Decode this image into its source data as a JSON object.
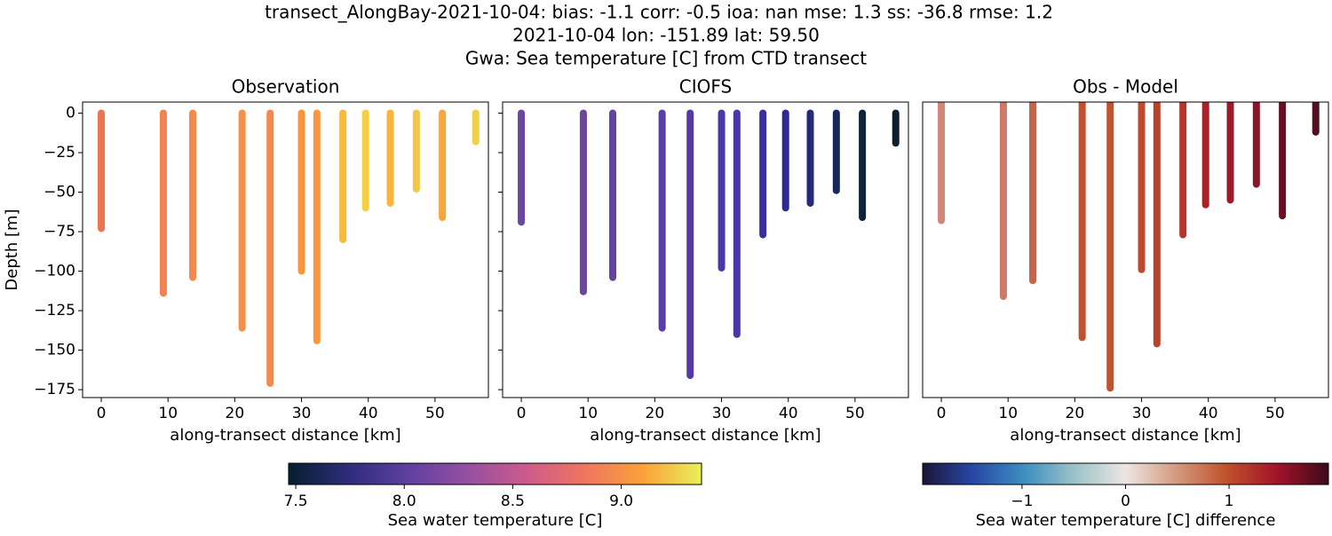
{
  "suptitle": [
    "transect_AlongBay-2021-10-04: bias: -1.1  corr: -0.5  ioa: nan  mse: 1.3  ss: -36.8  rmse: 1.2",
    "2021-10-04 lon: -151.89 lat: 59.50",
    "Gwa: Sea temperature [C] from CTD transect"
  ],
  "chart_data": [
    {
      "type": "column",
      "title": "Observation",
      "xlabel": "along-transect distance [km]",
      "ylabel": "Depth [m]",
      "xlim": [
        -2.8,
        58.0
      ],
      "xticks": [
        0,
        10,
        20,
        30,
        40,
        50
      ],
      "ylim": [
        -180,
        7
      ],
      "yticks": [
        0,
        {
          "value": -25,
          "label": "−25"
        },
        {
          "value": -50,
          "label": "−50"
        },
        {
          "value": -75,
          "label": "−75"
        },
        {
          "value": -100,
          "label": "−100"
        },
        {
          "value": -125,
          "label": "−125"
        },
        {
          "value": -150,
          "label": "−150"
        },
        {
          "value": -175,
          "label": "−175"
        }
      ],
      "show_ytick_labels": true,
      "x": [
        0,
        9.3,
        13.7,
        21.1,
        25.3,
        30,
        32.3,
        36.2,
        39.6,
        43.3,
        47.2,
        51.1,
        56.1
      ],
      "values": [
        -73,
        -114,
        -104,
        -136,
        -171,
        -100,
        -144,
        -80,
        -60,
        -57,
        -48,
        -66,
        -18
      ],
      "colors": [
        "#ee7350",
        "#f08350",
        "#f28a4e",
        "#f5904a",
        "#f58a4a",
        "#f8963f",
        "#f8973f",
        "#fbb83a",
        "#f5d040",
        "#fbb53a",
        "#f3c548",
        "#f9a43c",
        "#f1cf47"
      ]
    },
    {
      "type": "column",
      "title": "CIOFS",
      "xlabel": "along-transect distance [km]",
      "xlim": [
        -2.8,
        58.0
      ],
      "xticks": [
        0,
        10,
        20,
        30,
        40,
        50
      ],
      "ylim": [
        -180,
        7
      ],
      "yticks": [
        0,
        -25,
        -50,
        -75,
        -100,
        -125,
        -150,
        -175
      ],
      "show_ytick_labels": false,
      "x": [
        0,
        9.3,
        13.7,
        21.1,
        25.3,
        30,
        32.3,
        36.2,
        39.6,
        43.3,
        47.2,
        51.1,
        56.1
      ],
      "values": [
        -69,
        -113,
        -104,
        -136,
        -166,
        -98,
        -140,
        -77,
        -60,
        -57,
        -49,
        -66,
        -19
      ],
      "colors": [
        "#6a46a0",
        "#6a46a0",
        "#6443a0",
        "#5a3da4",
        "#553aa6",
        "#4c37a8",
        "#4a36a8",
        "#3b2fa0",
        "#2d2a92",
        "#232a7e",
        "#16275e",
        "#0d223c",
        "#0b1f30"
      ]
    },
    {
      "type": "column",
      "title": "Obs - Model",
      "xlabel": "along-transect distance [km]",
      "xlim": [
        -2.8,
        58.0
      ],
      "xticks": [
        0,
        10,
        20,
        30,
        40,
        50
      ],
      "ylim": [
        -180,
        7
      ],
      "columns_from_top": true,
      "x": [
        0,
        9.3,
        13.7,
        21.1,
        25.3,
        30,
        32.3,
        36.2,
        39.6,
        43.3,
        47.2,
        51.1,
        56.1
      ],
      "values": [
        -68,
        -116,
        -106,
        -142,
        -174,
        -99,
        -146,
        -77,
        -58,
        -55,
        -45,
        -65,
        -12
      ],
      "colors": [
        "#d3877a",
        "#cf7a68",
        "#c6654c",
        "#c2502f",
        "#c0522e",
        "#bb4a30",
        "#b8422a",
        "#b6352a",
        "#aa2228",
        "#9c1a2a",
        "#8a1428",
        "#6a0e24",
        "#501020"
      ]
    },
    {
      "type": "colorbar",
      "label": "Sea water temperature [C]",
      "xlim": [
        7.467,
        9.37
      ],
      "xticks": [
        7.5,
        {
          "value": 8,
          "label": "8.0"
        },
        8.5,
        {
          "value": 9,
          "label": "9.0"
        }
      ],
      "colormap": [
        "#04202d",
        "#2e2b7a",
        "#5d3fa0",
        "#934fa2",
        "#cb5a8c",
        "#ef7560",
        "#f9a13c",
        "#e9f05a"
      ]
    },
    {
      "type": "colorbar",
      "label": "Sea water temperature [C] difference",
      "xlim": [
        -1.96,
        1.96
      ],
      "xticks": [
        {
          "value": -1,
          "label": "−1"
        },
        0,
        1
      ],
      "colormap": [
        "#1b1538",
        "#2748a6",
        "#3d8ec0",
        "#9cc3c8",
        "#ece6e2",
        "#d49a80",
        "#c0502c",
        "#a0132a",
        "#3d0a1a"
      ]
    }
  ]
}
